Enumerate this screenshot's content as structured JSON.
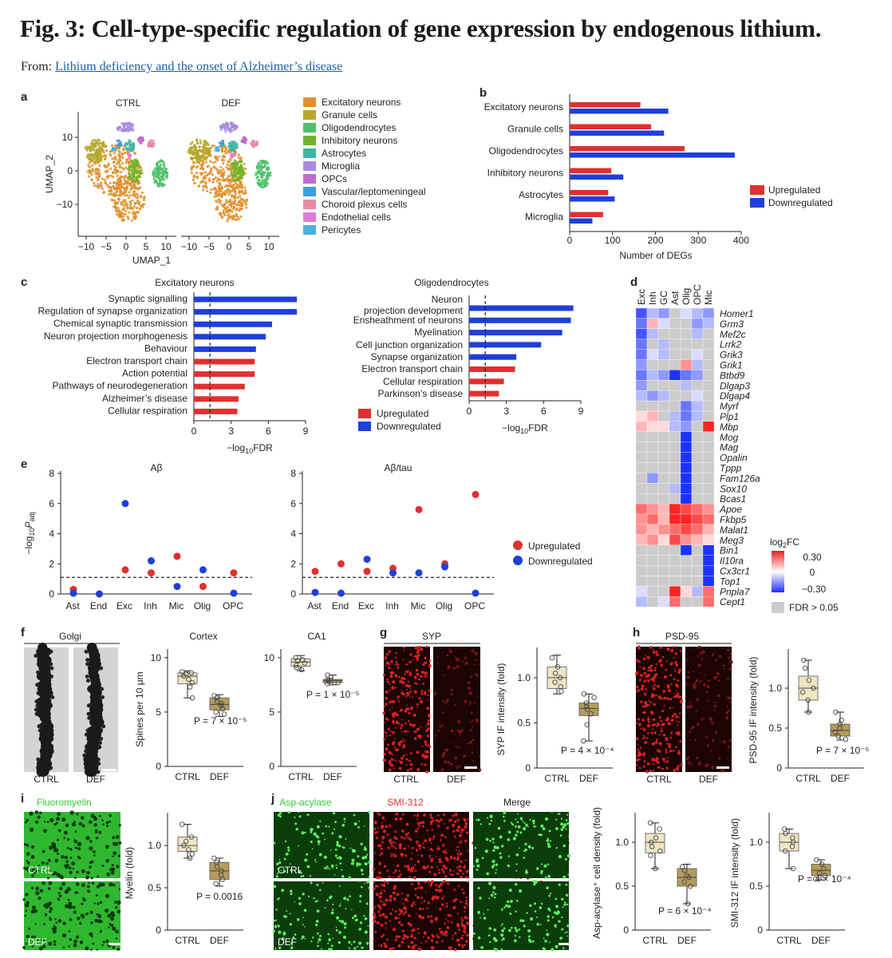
{
  "header": {
    "title": "Fig. 3: Cell-type-specific regulation of gene expression by endogenous lithium.",
    "from_label": "From:",
    "from_link": "Lithium deficiency and the onset of Alzheimer’s disease"
  },
  "colors": {
    "up": "#e03030",
    "down": "#1f3fdb",
    "ctrl_box": "#efe6c4",
    "def_box": "#b59c5c",
    "link": "#1a5fa6"
  },
  "panel_a": {
    "letter": "a",
    "titles": [
      "CTRL",
      "DEF"
    ],
    "xlabel": "UMAP_1",
    "ylabel": "UMAP_2",
    "xticks": [
      "−10",
      "−5",
      "0",
      "5",
      "10"
    ],
    "yticks": [
      "10",
      "0",
      "−10"
    ],
    "legend": [
      {
        "label": "Excitatory neurons",
        "color": "#e0902c"
      },
      {
        "label": "Granule cells",
        "color": "#b5a82a"
      },
      {
        "label": "Oligodendrocytes",
        "color": "#4fbf6a"
      },
      {
        "label": "Inhibitory neurons",
        "color": "#6fb52c"
      },
      {
        "label": "Astrocytes",
        "color": "#3fb5a5"
      },
      {
        "label": "Microglia",
        "color": "#a88ae0"
      },
      {
        "label": "OPCs",
        "color": "#c06ad0"
      },
      {
        "label": "Vascular/leptomeningeal",
        "color": "#3a9fe0"
      },
      {
        "label": "Choroid plexus cells",
        "color": "#e88aa6"
      },
      {
        "label": "Endothelial cells",
        "color": "#e07ad8"
      },
      {
        "label": "Pericytes",
        "color": "#4ab0e0"
      }
    ]
  },
  "chart_data": [
    {
      "panel": "b",
      "type": "bar",
      "orientation": "horizontal",
      "categories": [
        "Excitatory neurons",
        "Granule cells",
        "Oligodendrocytes",
        "Inhibitory neurons",
        "Astrocytes",
        "Microglia"
      ],
      "series": [
        {
          "name": "Upregulated",
          "values": [
            165,
            190,
            268,
            97,
            90,
            78
          ]
        },
        {
          "name": "Downregulated",
          "values": [
            230,
            220,
            385,
            125,
            105,
            53
          ]
        }
      ],
      "xlabel": "Number of DEGs",
      "xticks": [
        "0",
        "100",
        "200",
        "300",
        "400"
      ],
      "xlim": [
        0,
        400
      ],
      "legend": "right"
    },
    {
      "panel": "c-left",
      "type": "bar",
      "orientation": "horizontal",
      "title": "Excitatory neurons",
      "categories": [
        "Synaptic signalling",
        "Regulation of synapse organization",
        "Chemical synaptic transmission",
        "Neuron projection morphogenesis",
        "Behaviour",
        "Electron transport chain",
        "Action potential",
        "Pathways of neurodegeneration",
        "Alzheimer’s disease",
        "Cellular respiration"
      ],
      "values": [
        8.3,
        8.3,
        6.3,
        5.8,
        5.0,
        4.9,
        4.9,
        4.1,
        3.6,
        3.5
      ],
      "direction": [
        "down",
        "down",
        "down",
        "down",
        "down",
        "up",
        "up",
        "up",
        "up",
        "up"
      ],
      "threshold": 1.3,
      "xticks": [
        "0",
        "3",
        "6",
        "9"
      ],
      "xlim": [
        0,
        9
      ],
      "xlabel_main": "−log",
      "xlabel_sub": "10",
      "xlabel_end": "FDR"
    },
    {
      "panel": "c-right",
      "type": "bar",
      "orientation": "horizontal",
      "title": "Oligodendrocytes",
      "categories": [
        "Neuron projection development",
        "Ensheathment of neurons",
        "Myelination",
        "Cell junction organization",
        "Synapse organization",
        "Electron transport chain",
        "Cellular respiration",
        "Parkinson’s disease"
      ],
      "values": [
        8.4,
        8.2,
        7.5,
        5.8,
        3.8,
        3.7,
        2.8,
        2.4
      ],
      "direction": [
        "down",
        "down",
        "down",
        "down",
        "down",
        "up",
        "up",
        "up"
      ],
      "threshold": 1.3,
      "xticks": [
        "0",
        "3",
        "6",
        "9"
      ],
      "xlim": [
        0,
        9
      ],
      "xlabel_main": "−log",
      "xlabel_sub": "10",
      "xlabel_end": "FDR",
      "legend": [
        "Upregulated",
        "Downregulated"
      ]
    },
    {
      "panel": "e",
      "type": "scatter",
      "facets": [
        {
          "title": "Aβ",
          "up": [
            0.3,
            0,
            1.6,
            1.4,
            2.5,
            0.5,
            1.4
          ],
          "down": [
            0.05,
            0,
            6.0,
            2.2,
            0.5,
            1.6,
            0.05
          ]
        },
        {
          "title": "Aβ/tau",
          "up": [
            1.5,
            2.0,
            1.5,
            1.7,
            5.6,
            2.0,
            6.6
          ],
          "down": [
            0.1,
            0.05,
            2.3,
            1.4,
            1.4,
            1.8,
            0.05
          ]
        }
      ],
      "categories": [
        "Ast",
        "End",
        "Exc",
        "Inh",
        "Mic",
        "Olig",
        "OPC"
      ],
      "yticks": [
        "0",
        "2",
        "4",
        "6",
        "8"
      ],
      "ylim": [
        0,
        8
      ],
      "threshold": 1.1,
      "ylabel_main": "−log",
      "ylabel_sub": "10",
      "ylabel_p": "P",
      "ylabel_adj": "adj",
      "legend": [
        "Upregulated",
        "Downregulated"
      ]
    },
    {
      "panel": "d",
      "type": "heatmap",
      "columns": [
        "Exc",
        "Inh",
        "GC",
        "Ast",
        "Olig",
        "OPC",
        "Mic"
      ],
      "rows": [
        "Homer1",
        "Grm3",
        "Mef2c",
        "Lrrk2",
        "Grik3",
        "Grik1",
        "Btbd9",
        "Dlgap3",
        "Dlgap4",
        "Myrf",
        "Plp1",
        "Mbp",
        "Mog",
        "Mag",
        "Opalin",
        "Tppp",
        "Fam126a",
        "Sox10",
        "Bcas1",
        "Apoe",
        "Fkbp5",
        "Malat1",
        "Meg3",
        "Bin1",
        "Il10ra",
        "Cx3cr1",
        "Top1",
        "Pnpla7",
        "Cept1"
      ],
      "values": [
        [
          -0.25,
          -0.1,
          -0.15,
          "NA",
          -0.05,
          -0.1,
          -0.15
        ],
        [
          -0.2,
          0.1,
          -0.05,
          "NA",
          "NA",
          -0.15,
          -0.1
        ],
        [
          -0.25,
          -0.1,
          "NA",
          "NA",
          "NA",
          -0.1,
          "NA"
        ],
        [
          -0.2,
          "NA",
          -0.1,
          "NA",
          "NA",
          "NA",
          "NA"
        ],
        [
          -0.2,
          -0.05,
          -0.1,
          "NA",
          "NA",
          -0.05,
          "NA"
        ],
        [
          -0.15,
          "NA",
          "NA",
          "NA",
          0.15,
          -0.1,
          "NA"
        ],
        [
          -0.2,
          -0.1,
          -0.15,
          -0.3,
          -0.2,
          -0.15,
          "NA"
        ],
        [
          -0.15,
          "NA",
          "NA",
          "NA",
          -0.1,
          "NA",
          "NA"
        ],
        [
          -0.1,
          -0.15,
          -0.1,
          "NA",
          "NA",
          -0.05,
          "NA"
        ],
        [
          "NA",
          "NA",
          "NA",
          "NA",
          -0.2,
          -0.1,
          "NA"
        ],
        [
          0.05,
          0.1,
          "NA",
          -0.1,
          -0.2,
          -0.1,
          "NA"
        ],
        [
          0.1,
          0.05,
          0.05,
          -0.1,
          -0.15,
          "NA",
          0.3
        ],
        [
          "NA",
          "NA",
          "NA",
          "NA",
          -0.3,
          "NA",
          "NA"
        ],
        [
          "NA",
          "NA",
          "NA",
          "NA",
          -0.3,
          "NA",
          "NA"
        ],
        [
          "NA",
          "NA",
          "NA",
          "NA",
          -0.3,
          "NA",
          "NA"
        ],
        [
          "NA",
          "NA",
          "NA",
          "NA",
          -0.3,
          "NA",
          "NA"
        ],
        [
          "NA",
          -0.15,
          "NA",
          "NA",
          -0.3,
          "NA",
          "NA"
        ],
        [
          "NA",
          "NA",
          "NA",
          -0.1,
          -0.3,
          "NA",
          "NA"
        ],
        [
          "NA",
          "NA",
          "NA",
          "NA",
          -0.3,
          "NA",
          "NA"
        ],
        [
          0.2,
          0.15,
          0.1,
          0.3,
          0.25,
          0.2,
          0.15
        ],
        [
          0.15,
          0.2,
          0.1,
          0.3,
          0.3,
          0.25,
          0.2
        ],
        [
          0.15,
          0.1,
          0.15,
          0.2,
          0.25,
          0.2,
          0.1
        ],
        [
          0.1,
          0.15,
          0.05,
          0.25,
          0.15,
          0.1,
          0.05
        ],
        [
          "NA",
          "NA",
          "NA",
          "NA",
          -0.3,
          "NA",
          -0.3
        ],
        [
          "NA",
          "NA",
          "NA",
          "NA",
          "NA",
          "NA",
          -0.3
        ],
        [
          "NA",
          "NA",
          "NA",
          "NA",
          "NA",
          "NA",
          -0.3
        ],
        [
          "NA",
          "NA",
          "NA",
          "NA",
          "NA",
          "NA",
          -0.3
        ],
        [
          -0.05,
          "NA",
          "NA",
          0.3,
          0.05,
          -0.1,
          0.2
        ],
        [
          -0.1,
          "NA",
          -0.05,
          0.2,
          "NA",
          "NA",
          0.2
        ]
      ],
      "scale_title_main": "log",
      "scale_title_sub": "2",
      "scale_title_end": "FC",
      "scale_ticks": [
        "0.30",
        "0",
        "−0.30"
      ],
      "na_label": "FDR > 0.05"
    },
    {
      "panel": "f",
      "type": "box",
      "facets": [
        {
          "title": "Cortex",
          "ylabel": "Spines per 10 μm",
          "yticks": [
            "0",
            "5",
            "10"
          ],
          "ylim": [
            0,
            10.5
          ],
          "pvalue": "P = 7 × 10⁻⁵",
          "ctrl": {
            "points": [
              8.7,
              8.6,
              8.5,
              8.3,
              8.0,
              7.7,
              7.3,
              6.3
            ],
            "box": [
              6.3,
              7.6,
              8.3,
              8.6,
              8.8
            ]
          },
          "def": {
            "points": [
              6.5,
              6.3,
              6.0,
              5.8,
              5.6,
              5.3,
              5.0,
              4.8
            ],
            "box": [
              4.6,
              5.2,
              5.7,
              6.3,
              6.6
            ]
          }
        },
        {
          "title": "CA1",
          "yticks": [
            "0",
            "5",
            "10"
          ],
          "ylim": [
            0,
            10.5
          ],
          "pvalue": "P = 1 × 10⁻⁵",
          "ctrl": {
            "points": [
              10.0,
              9.8,
              9.7,
              9.5,
              9.3,
              9.1,
              8.9
            ],
            "box": [
              8.8,
              9.2,
              9.6,
              9.9,
              10.2
            ]
          },
          "def": {
            "points": [
              8.4,
              8.0,
              7.9,
              7.9,
              7.8,
              7.7,
              7.6
            ],
            "box": [
              7.5,
              7.7,
              7.9,
              8.0,
              8.4
            ]
          }
        }
      ],
      "groups": [
        "CTRL",
        "DEF"
      ]
    },
    {
      "panel": "g",
      "type": "box",
      "ylabel": "SYP IF intensity (fold)",
      "yticks": [
        "0",
        "0.5",
        "1.0"
      ],
      "ylim": [
        0,
        1.3
      ],
      "pvalue": "P = 4 × 10⁻⁴",
      "ctrl": {
        "points": [
          1.22,
          1.12,
          1.05,
          1.0,
          0.95,
          0.9,
          0.85
        ],
        "box": [
          0.82,
          0.88,
          1.0,
          1.12,
          1.25
        ]
      },
      "def": {
        "points": [
          0.82,
          0.78,
          0.72,
          0.68,
          0.65,
          0.6,
          0.48,
          0.3
        ],
        "box": [
          0.3,
          0.58,
          0.66,
          0.72,
          0.82
        ]
      },
      "groups": [
        "CTRL",
        "DEF"
      ]
    },
    {
      "panel": "h",
      "type": "box",
      "ylabel": "PSD-95 IF intensity (fold)",
      "yticks": [
        "0",
        "0.5",
        "1.0"
      ],
      "ylim": [
        0,
        1.45
      ],
      "pvalue": "P = 7 × 10⁻⁵",
      "ctrl": {
        "points": [
          1.35,
          1.25,
          1.1,
          1.0,
          0.95,
          0.85,
          0.7
        ],
        "box": [
          0.7,
          0.85,
          1.0,
          1.15,
          1.35
        ]
      },
      "def": {
        "points": [
          0.7,
          0.6,
          0.55,
          0.5,
          0.45,
          0.4,
          0.36
        ],
        "box": [
          0.35,
          0.4,
          0.47,
          0.55,
          0.7
        ]
      },
      "groups": [
        "CTRL",
        "DEF"
      ]
    },
    {
      "panel": "i",
      "type": "box",
      "ylabel": "Myelin (fold)",
      "yticks": [
        "0",
        "0.5",
        "1.0"
      ],
      "ylim": [
        0,
        1.35
      ],
      "pvalue": "P = 0.0016",
      "ctrl": {
        "points": [
          1.25,
          1.1,
          1.05,
          1.0,
          0.95,
          0.9,
          0.85
        ],
        "box": [
          0.85,
          0.93,
          1.0,
          1.1,
          1.25
        ]
      },
      "def": {
        "points": [
          0.85,
          0.8,
          0.75,
          0.7,
          0.65,
          0.6,
          0.55
        ],
        "box": [
          0.52,
          0.6,
          0.7,
          0.8,
          0.85
        ]
      },
      "groups": [
        "CTRL",
        "DEF"
      ]
    },
    {
      "panel": "j-left",
      "type": "box",
      "ylabel": "Asp-acylase⁺ cell density (fold)",
      "yticks": [
        "0",
        "0.5",
        "1.0"
      ],
      "ylim": [
        0,
        1.3
      ],
      "pvalue": "P = 6 × 10⁻⁴",
      "ctrl": {
        "points": [
          1.22,
          1.15,
          1.05,
          1.0,
          0.95,
          0.9,
          0.85,
          0.7
        ],
        "box": [
          0.7,
          0.88,
          1.0,
          1.1,
          1.22
        ]
      },
      "def": {
        "points": [
          0.72,
          0.68,
          0.62,
          0.6,
          0.55,
          0.5,
          0.3
        ],
        "box": [
          0.3,
          0.5,
          0.6,
          0.7,
          0.75
        ]
      },
      "groups": [
        "CTRL",
        "DEF"
      ]
    },
    {
      "panel": "j-right",
      "type": "box",
      "ylabel": "SMI-312 IF intensity (fold)",
      "yticks": [
        "0",
        "0.5",
        "1.0"
      ],
      "ylim": [
        0,
        1.3
      ],
      "pvalue": "P = 4 × 10⁻⁴",
      "ctrl": {
        "points": [
          1.15,
          1.1,
          1.05,
          1.0,
          0.95,
          0.9,
          0.7
        ],
        "box": [
          0.7,
          0.9,
          1.0,
          1.1,
          1.15
        ]
      },
      "def": {
        "points": [
          0.8,
          0.75,
          0.7,
          0.65,
          0.62,
          0.58
        ],
        "box": [
          0.57,
          0.62,
          0.68,
          0.75,
          0.8
        ]
      },
      "groups": [
        "CTRL",
        "DEF"
      ]
    }
  ],
  "micrographs": {
    "f": {
      "letter": "f",
      "title": "Golgi",
      "labels": [
        "CTRL",
        "DEF"
      ]
    },
    "g": {
      "letter": "g",
      "title": "SYP",
      "labels": [
        "CTRL",
        "DEF"
      ]
    },
    "h": {
      "letter": "h",
      "title": "PSD-95",
      "labels": [
        "CTRL",
        "DEF"
      ]
    },
    "i": {
      "letter": "i",
      "title": "Fluoromyelin",
      "labels": [
        "CTRL",
        "DEF"
      ]
    },
    "j": {
      "letter": "j",
      "titles": [
        "Asp-acylase",
        "SMI-312",
        "Merge"
      ],
      "labels": [
        "CTRL",
        "DEF"
      ]
    }
  },
  "panel_letters": {
    "b": "b",
    "c": "c",
    "d": "d",
    "e": "e"
  }
}
